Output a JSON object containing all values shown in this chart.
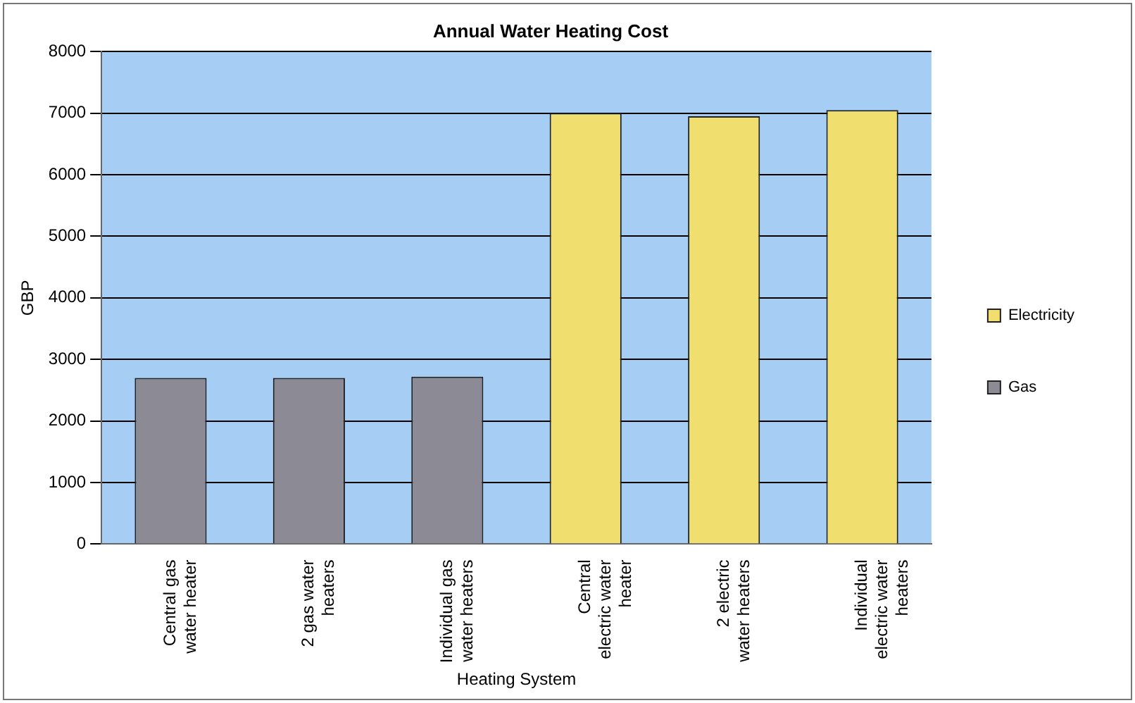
{
  "chart_data": {
    "type": "bar",
    "title": "Annual Water Heating Cost",
    "xlabel": "Heating System",
    "ylabel": "GBP",
    "categories": [
      "Central gas water heater",
      "2 gas water heaters",
      "Individual gas water heaters",
      "Central electric water heater",
      "2 electric water heaters",
      "Individual electric water heaters"
    ],
    "series": [
      {
        "name": "Electricity",
        "color": "#f0de6e",
        "values": [
          null,
          null,
          null,
          7000,
          6950,
          7050
        ]
      },
      {
        "name": "Gas",
        "color": "#8c8a95",
        "values": [
          2700,
          2700,
          2720,
          null,
          null,
          null
        ]
      }
    ],
    "stacked": true,
    "ylim": [
      0,
      8000
    ],
    "yticks": [
      0,
      1000,
      2000,
      3000,
      4000,
      5000,
      6000,
      7000,
      8000
    ],
    "grid": "y",
    "legend": "right"
  }
}
